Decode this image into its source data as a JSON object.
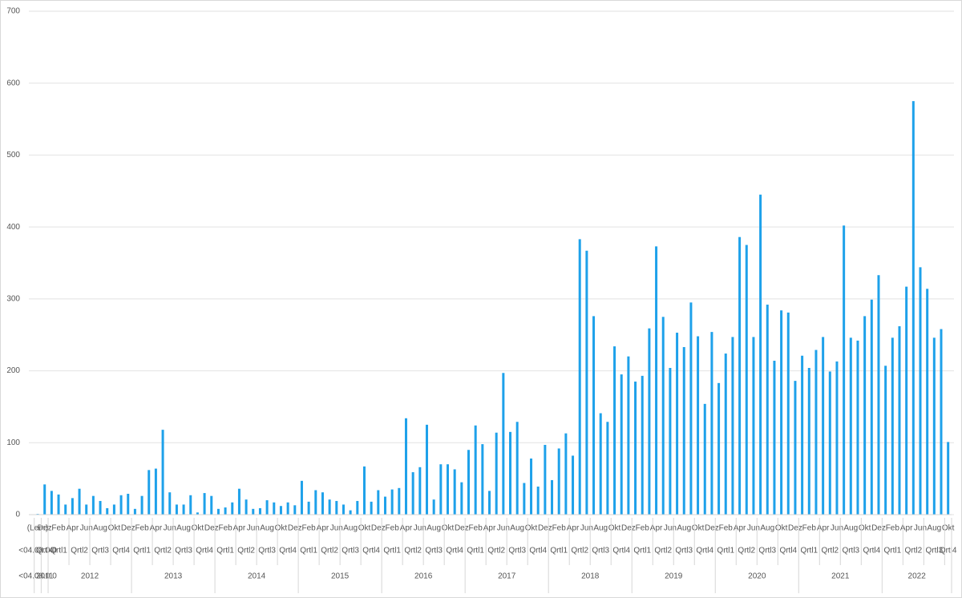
{
  "chart_data": {
    "type": "bar",
    "categories": [
      "(Leer)",
      "Dez",
      null,
      "Feb",
      null,
      "Apr",
      null,
      "Jun",
      null,
      "Aug",
      null,
      "Okt",
      null,
      "Dez",
      null,
      "Feb",
      null,
      "Apr",
      null,
      "Jun",
      null,
      "Aug",
      null,
      "Okt",
      null,
      "Dez",
      null,
      "Feb",
      null,
      "Apr",
      null,
      "Jun",
      null,
      "Aug",
      null,
      "Okt",
      null,
      "Dez",
      null,
      "Feb",
      null,
      "Apr",
      null,
      "Jun",
      null,
      "Aug",
      null,
      "Okt",
      null,
      "Dez",
      null,
      "Feb",
      null,
      "Apr",
      null,
      "Jun",
      null,
      "Aug",
      null,
      "Okt",
      null,
      "Dez",
      null,
      "Feb",
      null,
      "Apr",
      null,
      "Jun",
      null,
      "Aug",
      null,
      "Okt",
      null,
      "Dez",
      null,
      "Feb",
      null,
      "Apr",
      null,
      "Jun",
      null,
      "Aug",
      null,
      "Okt",
      null,
      "Dez",
      null,
      "Feb",
      null,
      "Apr",
      null,
      "Jun",
      null,
      "Aug",
      null,
      "Okt",
      null,
      "Dez",
      null,
      "Feb",
      null,
      "Apr",
      null,
      "Jun",
      null,
      "Aug",
      null,
      "Okt",
      null,
      "Dez",
      null,
      "Feb",
      null,
      "Apr",
      null,
      "Jun",
      null,
      "Aug",
      null,
      "Okt",
      null,
      "Dez",
      null,
      "Feb",
      null,
      "Apr",
      null,
      "Jun",
      null,
      "Aug",
      null,
      "Okt"
    ],
    "quarters": [
      "<04.08.0 0",
      "Qrtl4",
      "Qrtl1",
      "Qrtl2",
      "Qrtl3",
      "Qrtl4",
      "Qrtl1",
      "Qrtl2",
      "Qrtl3",
      "Qrtl4",
      "Qrtl1",
      "Qrtl2",
      "Qrtl3",
      "Qrtl4",
      "Qrtl1",
      "Qrtl2",
      "Qrtl3",
      "Qrtl4",
      "Qrtl1",
      "Qrtl2",
      "Qrtl3",
      "Qrtl4",
      "Qrtl1",
      "Qrtl2",
      "Qrtl3",
      "Qrtl4",
      "Qrtl1",
      "Qrtl2",
      "Qrtl3",
      "Qrtl4",
      "Qrtl1",
      "Qrtl2",
      "Qrtl3",
      "Qrtl4",
      "Qrtl1",
      "Qrtl2",
      "Qrtl3",
      "Qrtl4",
      "Qrtl1",
      "Qrtl2",
      "Qrtl3",
      "Qrtl4",
      "Qrtl1",
      "Qrtl2",
      "Qrtl3",
      "Qrtl4"
    ],
    "years": [
      "<04.08.0 0",
      "2011",
      "2012",
      "2013",
      "2014",
      "2015",
      "2016",
      "2017",
      "2018",
      "2019",
      "2020",
      "2021",
      "2022"
    ],
    "values": [
      1,
      42,
      33,
      28,
      14,
      23,
      36,
      14,
      26,
      19,
      9,
      14,
      27,
      29,
      8,
      26,
      62,
      64,
      118,
      31,
      14,
      14,
      27,
      3,
      30,
      26,
      8,
      10,
      17,
      36,
      21,
      8,
      9,
      20,
      17,
      12,
      17,
      13,
      47,
      18,
      34,
      31,
      21,
      19,
      14,
      6,
      19,
      67,
      18,
      34,
      25,
      35,
      37,
      134,
      59,
      66,
      125,
      21,
      70,
      70,
      63,
      45,
      90,
      124,
      98,
      33,
      114,
      197,
      115,
      129,
      44,
      78,
      39,
      97,
      48,
      92,
      113,
      82,
      383,
      367,
      276,
      141,
      129,
      234,
      195,
      220,
      185,
      193,
      259,
      373,
      275,
      204,
      253,
      233,
      295,
      248,
      154,
      254,
      183,
      224,
      247,
      386,
      375,
      247,
      445,
      292,
      214,
      284,
      281,
      186,
      221,
      204,
      229,
      247,
      199,
      213,
      402,
      246,
      242,
      276,
      299,
      333,
      207,
      246,
      262,
      317,
      575,
      344,
      314,
      246,
      258,
      101
    ],
    "color": "#1ea1ea",
    "ylim": [
      0,
      700
    ],
    "yticks": [
      0,
      100,
      200,
      300,
      400,
      500,
      600,
      700
    ],
    "grid": true
  }
}
